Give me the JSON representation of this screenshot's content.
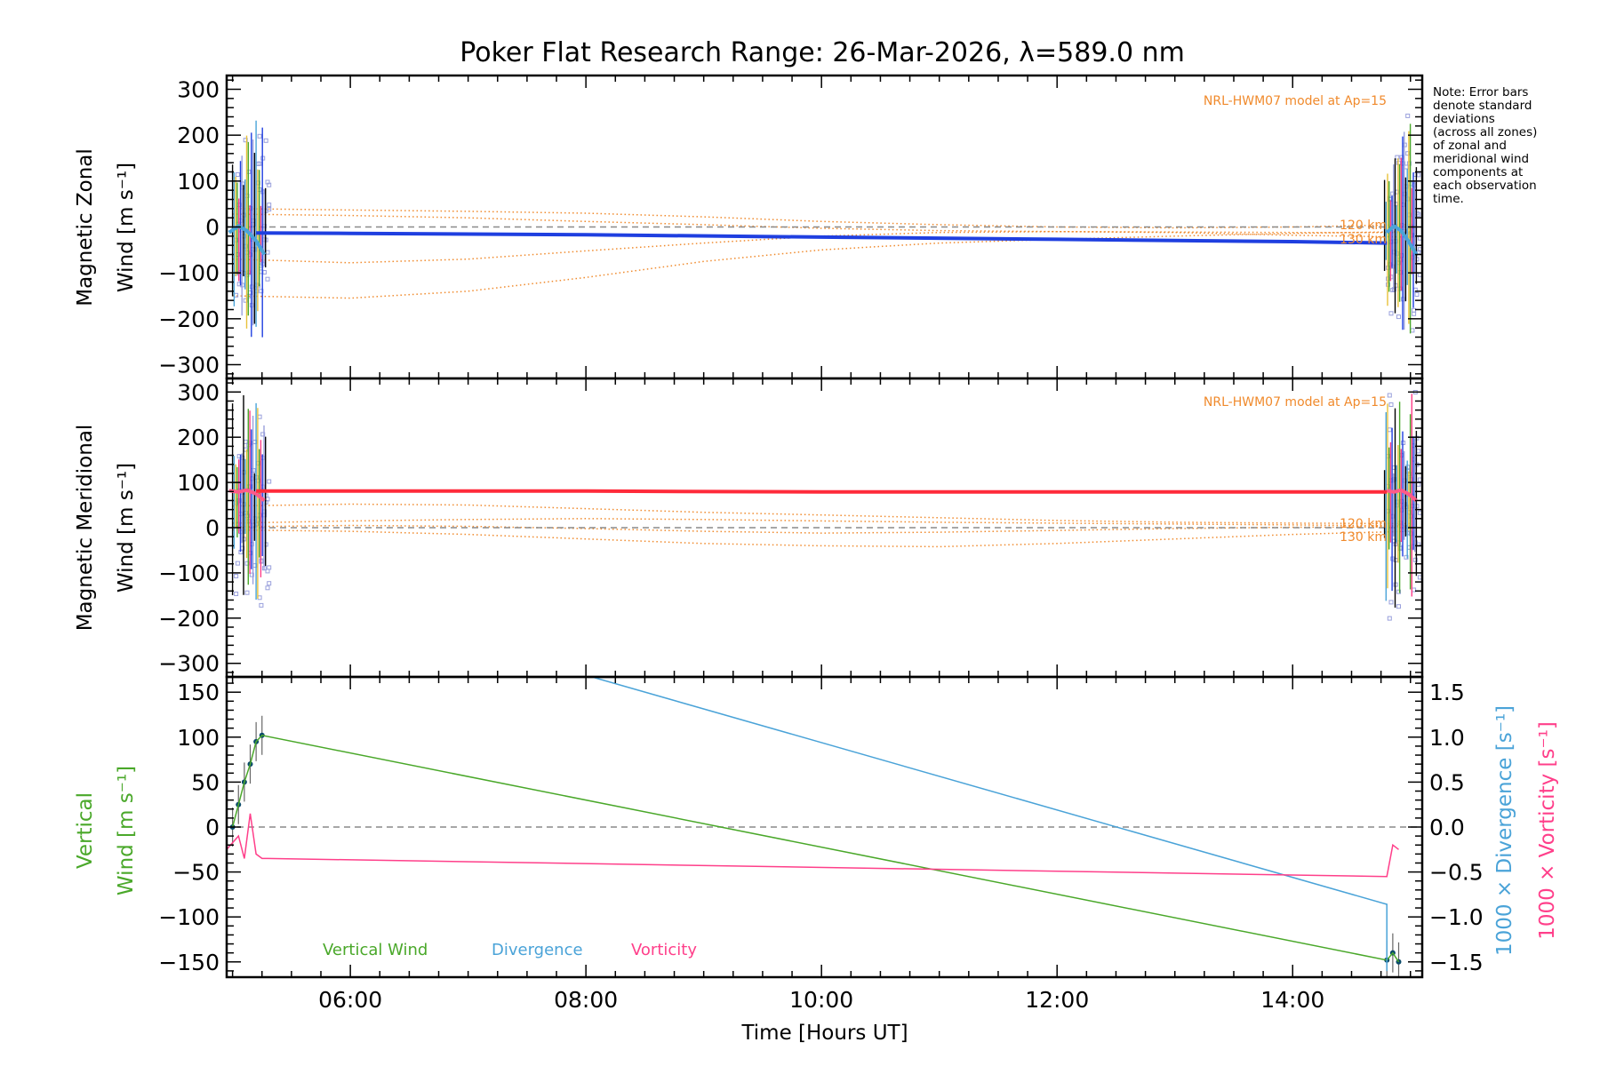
{
  "chart_data": [
    {
      "type": "line",
      "title": "Poker Flat Research Range: 26-Mar-2026, λ=589.0 nm",
      "ylabel_lines": [
        "Magnetic Zonal",
        "Wind [m s⁻¹]"
      ],
      "ylim": [
        -330,
        330
      ],
      "xlim": [
        4.95,
        15.1
      ],
      "yticks": [
        300,
        200,
        100,
        0,
        -100,
        -200,
        -300
      ],
      "ytick_labels": [
        "300",
        "200",
        "100",
        "0",
        "−100",
        "−200",
        "−300"
      ],
      "model_label": "NRL-HWM07 model at Ap=15",
      "altitude_labels": [
        "120 km",
        "130 km"
      ],
      "note_lines": [
        "Note: Error bars",
        "denote standard",
        "deviations",
        "(across all zones)",
        "of zonal and",
        "meridional wind",
        "components at",
        "each observation",
        "time."
      ],
      "series": [
        {
          "name": "Mean zonal wind",
          "color": "#1f3fe0",
          "x": [
            5.2,
            6.0,
            8.0,
            10.0,
            12.0,
            14.0,
            14.8
          ],
          "values": [
            -13,
            -14,
            -17,
            -22,
            -27,
            -32,
            -35
          ]
        },
        {
          "name": "Model 1",
          "color": "#f08a2c",
          "style": "dotted",
          "x": [
            5.0,
            6.0,
            7.0,
            8.0,
            9.0,
            10.0,
            11.0,
            12.0,
            13.0,
            14.0,
            15.0
          ],
          "values": [
            40,
            37,
            34,
            30,
            22,
            12,
            5,
            0,
            -2,
            0,
            5
          ]
        },
        {
          "name": "Model 2",
          "color": "#f08a2c",
          "style": "dotted",
          "x": [
            5.0,
            6.0,
            7.0,
            8.0,
            9.0,
            10.0,
            11.0,
            12.0,
            13.0,
            14.0,
            15.0
          ],
          "values": [
            28,
            25,
            20,
            12,
            5,
            -3,
            -8,
            -10,
            -11,
            -12,
            -12
          ]
        },
        {
          "name": "Model 3",
          "color": "#f08a2c",
          "style": "dotted",
          "x": [
            5.0,
            6.0,
            7.0,
            8.0,
            9.0,
            10.0,
            11.0,
            12.0,
            13.0,
            14.0,
            15.0
          ],
          "values": [
            -70,
            -78,
            -70,
            -52,
            -35,
            -20,
            -12,
            -10,
            -12,
            -18,
            -22
          ]
        },
        {
          "name": "Model 4",
          "color": "#f08a2c",
          "style": "dotted",
          "x": [
            5.0,
            6.0,
            7.0,
            8.0,
            9.0,
            10.0,
            11.0,
            12.0,
            13.0,
            14.0,
            15.0
          ],
          "values": [
            -150,
            -155,
            -140,
            -110,
            -75,
            -50,
            -35,
            -27,
            -20,
            -14,
            -10
          ]
        }
      ]
    },
    {
      "type": "line",
      "ylabel_lines": [
        "Magnetic Meridional",
        "Wind [m s⁻¹]"
      ],
      "ylim": [
        -330,
        330
      ],
      "xlim": [
        4.95,
        15.1
      ],
      "yticks": [
        300,
        200,
        100,
        0,
        -100,
        -200,
        -300
      ],
      "ytick_labels": [
        "300",
        "200",
        "100",
        "0",
        "−100",
        "−200",
        "−300"
      ],
      "model_label": "NRL-HWM07 model at Ap=15",
      "altitude_labels": [
        "120 km",
        "130 km"
      ],
      "series": [
        {
          "name": "Mean meridional wind",
          "color": "#ff2a3a",
          "x": [
            5.2,
            6.0,
            8.0,
            10.0,
            12.0,
            14.0,
            14.8
          ],
          "values": [
            81,
            81,
            81,
            79,
            79,
            79,
            79
          ]
        },
        {
          "name": "Model 1",
          "color": "#f08a2c",
          "style": "dotted",
          "x": [
            5.0,
            6.0,
            7.0,
            8.0,
            9.0,
            10.0,
            11.0,
            12.0,
            13.0,
            14.0,
            15.0
          ],
          "values": [
            48,
            52,
            50,
            42,
            34,
            28,
            22,
            16,
            12,
            10,
            9
          ]
        },
        {
          "name": "Model 2",
          "color": "#f08a2c",
          "style": "dotted",
          "x": [
            5.0,
            6.0,
            7.0,
            8.0,
            9.0,
            10.0,
            11.0,
            12.0,
            13.0,
            14.0,
            15.0
          ],
          "values": [
            10,
            15,
            18,
            20,
            18,
            15,
            12,
            10,
            8,
            6,
            4
          ]
        },
        {
          "name": "Model 3",
          "color": "#f08a2c",
          "style": "dotted",
          "x": [
            5.0,
            6.0,
            7.0,
            8.0,
            9.0,
            10.0,
            11.0,
            12.0,
            13.0,
            14.0,
            15.0
          ],
          "values": [
            2,
            5,
            3,
            -2,
            -8,
            -12,
            -10,
            -6,
            -2,
            1,
            2
          ]
        },
        {
          "name": "Model 4",
          "color": "#f08a2c",
          "style": "dotted",
          "x": [
            5.0,
            6.0,
            7.0,
            8.0,
            9.0,
            10.0,
            11.0,
            12.0,
            13.0,
            14.0,
            15.0
          ],
          "values": [
            -5,
            -8,
            -15,
            -25,
            -35,
            -40,
            -42,
            -35,
            -25,
            -15,
            -8
          ]
        }
      ]
    },
    {
      "type": "line",
      "ylabel_lines": [
        "Vertical",
        "Wind [m s⁻¹]"
      ],
      "right_ylabels": [
        "1000 × Divergence [s⁻¹]",
        "1000 × Vorticity [s⁻¹]"
      ],
      "ylim": [
        -167,
        167
      ],
      "xlim": [
        4.95,
        15.1
      ],
      "yticks": [
        150,
        100,
        50,
        0,
        -50,
        -100,
        -150
      ],
      "ytick_labels": [
        "150",
        "100",
        "50",
        "0",
        "−50",
        "−100",
        "−150"
      ],
      "right_ylim": [
        -1.67,
        1.67
      ],
      "right_yticks": [
        1.5,
        1.0,
        0.5,
        0.0,
        -0.5,
        -1.0,
        -1.5
      ],
      "right_ytick_labels": [
        "1.5",
        "1.0",
        "0.5",
        "0.0",
        "−0.5",
        "−1.0",
        "−1.5"
      ],
      "xticks": [
        6,
        8,
        10,
        12,
        14
      ],
      "xtick_labels": [
        "06:00",
        "08:00",
        "10:00",
        "12:00",
        "14:00"
      ],
      "xlabel": "Time [Hours UT]",
      "legend": [
        "Vertical Wind",
        "Divergence",
        "Vorticity"
      ],
      "series": [
        {
          "name": "Vertical Wind",
          "color": "#4aa82a",
          "axis": "left",
          "x": [
            5.0,
            5.05,
            5.1,
            5.15,
            5.2,
            5.25,
            14.8,
            14.85,
            14.9
          ],
          "values": [
            0,
            25,
            50,
            70,
            95,
            102,
            -148,
            -140,
            -150
          ]
        },
        {
          "name": "Divergence",
          "color": "#4aa3d8",
          "axis": "right",
          "x": [
            8.05,
            14.8,
            14.8
          ],
          "values": [
            1.67,
            -0.86,
            -1.6
          ]
        },
        {
          "name": "Vorticity",
          "color": "#ff3f8a",
          "axis": "right",
          "x": [
            4.95,
            5.05,
            5.1,
            5.15,
            5.2,
            5.25,
            5.3,
            14.8,
            14.85,
            14.9
          ],
          "values": [
            -0.25,
            -0.1,
            -0.35,
            0.15,
            -0.3,
            -0.35,
            -0.35,
            -0.55,
            -0.2,
            -0.25
          ]
        }
      ]
    }
  ]
}
